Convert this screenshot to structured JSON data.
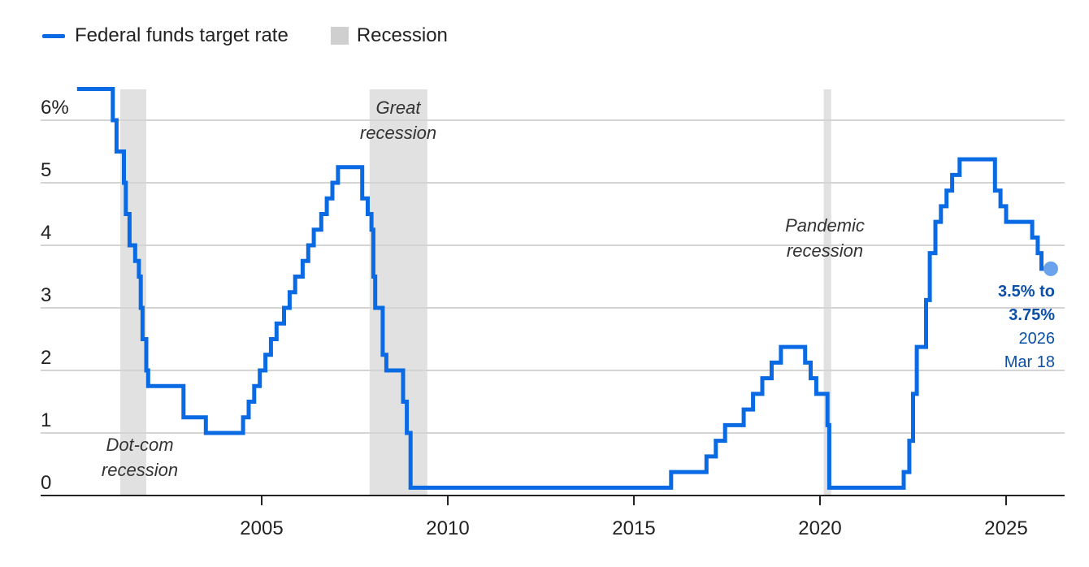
{
  "legend": {
    "rate_label": "Federal funds target rate",
    "recession_label": "Recession"
  },
  "colors": {
    "rate": "#0a6ae3",
    "recession": "#e1e1e1",
    "endpoint": "#6aa2ec",
    "end_label": "#0b4fa8"
  },
  "chart_data": {
    "type": "line",
    "title": "",
    "xlabel": "",
    "ylabel": "",
    "xlim": [
      2000.0,
      2027.0
    ],
    "ylim": [
      0,
      6.5
    ],
    "grid": true,
    "legend_position": "top-left",
    "x_ticks": [
      {
        "value": 2005,
        "label": "2005"
      },
      {
        "value": 2010,
        "label": "2010"
      },
      {
        "value": 2015,
        "label": "2015"
      },
      {
        "value": 2020,
        "label": "2020"
      },
      {
        "value": 2025,
        "label": "2025"
      }
    ],
    "y_ticks": [
      {
        "value": 0,
        "label": "0"
      },
      {
        "value": 1,
        "label": "1"
      },
      {
        "value": 2,
        "label": "2"
      },
      {
        "value": 3,
        "label": "3"
      },
      {
        "value": 4,
        "label": "4"
      },
      {
        "value": 5,
        "label": "5"
      },
      {
        "value": 6,
        "label": "6%"
      }
    ],
    "recessions": [
      {
        "start": 2001.2,
        "end": 2001.9,
        "label_lines": [
          "Dot-com",
          "recession"
        ]
      },
      {
        "start": 2007.9,
        "end": 2009.45,
        "label_lines": [
          "Great",
          "recession"
        ]
      },
      {
        "start": 2020.1,
        "end": 2020.3,
        "label_lines": [
          "Pandemic",
          "recession"
        ]
      }
    ],
    "series": [
      {
        "name": "Federal funds target rate",
        "steps": [
          [
            2000.0,
            6.5
          ],
          [
            2001.0,
            6.0
          ],
          [
            2001.1,
            5.5
          ],
          [
            2001.3,
            5.0
          ],
          [
            2001.35,
            4.5
          ],
          [
            2001.45,
            4.0
          ],
          [
            2001.6,
            3.75
          ],
          [
            2001.7,
            3.5
          ],
          [
            2001.75,
            3.0
          ],
          [
            2001.8,
            2.5
          ],
          [
            2001.9,
            2.0
          ],
          [
            2001.95,
            1.75
          ],
          [
            2002.9,
            1.25
          ],
          [
            2003.5,
            1.0
          ],
          [
            2004.5,
            1.25
          ],
          [
            2004.65,
            1.5
          ],
          [
            2004.8,
            1.75
          ],
          [
            2004.95,
            2.0
          ],
          [
            2005.1,
            2.25
          ],
          [
            2005.25,
            2.5
          ],
          [
            2005.4,
            2.75
          ],
          [
            2005.6,
            3.0
          ],
          [
            2005.75,
            3.25
          ],
          [
            2005.9,
            3.5
          ],
          [
            2006.1,
            3.75
          ],
          [
            2006.25,
            4.0
          ],
          [
            2006.4,
            4.25
          ],
          [
            2006.6,
            4.5
          ],
          [
            2006.75,
            4.75
          ],
          [
            2006.9,
            5.0
          ],
          [
            2007.05,
            5.25
          ],
          [
            2007.7,
            4.75
          ],
          [
            2007.85,
            4.5
          ],
          [
            2007.95,
            4.25
          ],
          [
            2008.0,
            3.5
          ],
          [
            2008.05,
            3.0
          ],
          [
            2008.25,
            2.25
          ],
          [
            2008.35,
            2.0
          ],
          [
            2008.8,
            1.5
          ],
          [
            2008.9,
            1.0
          ],
          [
            2009.0,
            0.125
          ],
          [
            2016.0,
            0.375
          ],
          [
            2016.95,
            0.625
          ],
          [
            2017.2,
            0.875
          ],
          [
            2017.45,
            1.125
          ],
          [
            2017.95,
            1.375
          ],
          [
            2018.2,
            1.625
          ],
          [
            2018.45,
            1.875
          ],
          [
            2018.7,
            2.125
          ],
          [
            2018.95,
            2.375
          ],
          [
            2019.6,
            2.125
          ],
          [
            2019.75,
            1.875
          ],
          [
            2019.9,
            1.625
          ],
          [
            2020.2,
            1.125
          ],
          [
            2020.25,
            0.125
          ],
          [
            2022.25,
            0.375
          ],
          [
            2022.4,
            0.875
          ],
          [
            2022.5,
            1.625
          ],
          [
            2022.6,
            2.375
          ],
          [
            2022.85,
            3.125
          ],
          [
            2022.95,
            3.875
          ],
          [
            2023.1,
            4.375
          ],
          [
            2023.25,
            4.625
          ],
          [
            2023.4,
            4.875
          ],
          [
            2023.55,
            5.125
          ],
          [
            2023.75,
            5.375
          ],
          [
            2024.7,
            4.875
          ],
          [
            2024.85,
            4.625
          ],
          [
            2025.0,
            4.375
          ],
          [
            2025.7,
            4.125
          ],
          [
            2025.85,
            3.875
          ],
          [
            2025.95,
            3.625
          ],
          [
            2026.2,
            3.625
          ]
        ]
      }
    ],
    "endpoint": {
      "x": 2026.2,
      "y": 3.625
    },
    "end_label": {
      "range_line1": "3.5% to",
      "range_line2": "3.75%",
      "year": "2026",
      "date": "Mar 18"
    }
  }
}
